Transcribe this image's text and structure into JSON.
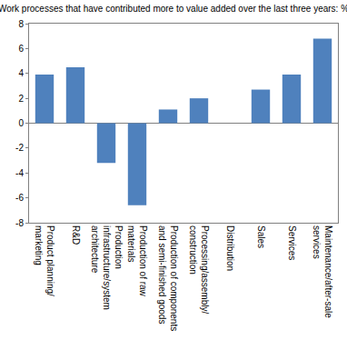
{
  "chart_data": {
    "type": "bar",
    "title": "(Work processes that have contributed more to value added over the last three years: %)",
    "categories": [
      "Product planning/marketing",
      "R&D",
      "Production infrastructure/system architecture",
      "Production of raw materials",
      "Production of components and semi-finished goods",
      "Processing/assembly/construction",
      "Distribution",
      "Sales",
      "Services",
      "Maintenance/after-sale services"
    ],
    "values": [
      3.9,
      4.5,
      -3.2,
      -6.6,
      1.1,
      2.0,
      0.0,
      2.7,
      3.9,
      6.8
    ],
    "color": "#4f81bd",
    "ylim": [
      -8,
      8
    ],
    "yticks": [
      -8,
      -6,
      -4,
      -2,
      0,
      2,
      4,
      6,
      8
    ],
    "grid": false
  }
}
